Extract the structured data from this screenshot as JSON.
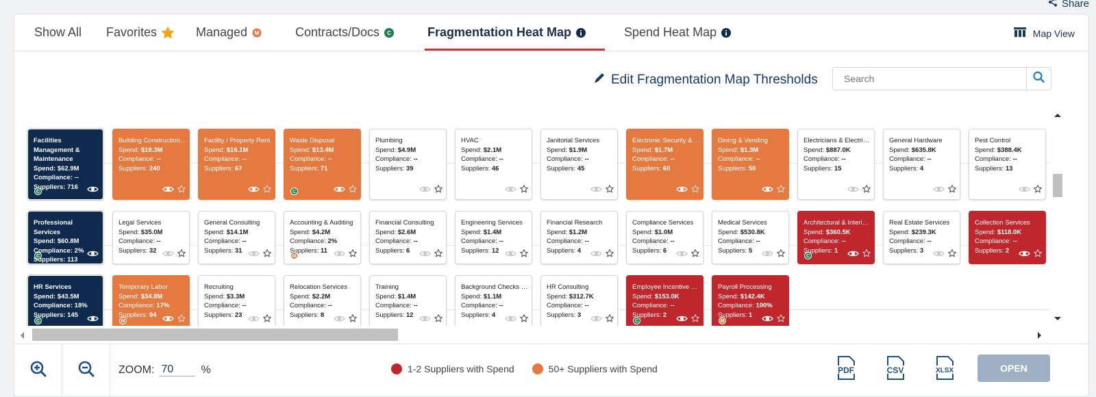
{
  "share_label": "Share",
  "tabs": [
    {
      "label": "Show All"
    },
    {
      "label": "Favorites"
    },
    {
      "label": "Managed"
    },
    {
      "label": "Contracts/Docs"
    },
    {
      "label": "Fragmentation Heat Map"
    },
    {
      "label": "Spend Heat Map"
    }
  ],
  "map_view_label": "Map View",
  "edit_thresholds_label": "Edit Fragmentation Map Thresholds",
  "search": {
    "placeholder": "Search",
    "value": ""
  },
  "rows": [
    {
      "category": {
        "name": "Facilities Management & Maintenance",
        "spend": "$62.9M",
        "compliance": "--",
        "suppliers": "716",
        "badge": "C"
      },
      "tiles": [
        {
          "name": "Building Construction ...",
          "spend": "$18.3M",
          "compliance": "--",
          "suppliers": "240",
          "color": "orange",
          "badge": ""
        },
        {
          "name": "Facility / Property Rent",
          "spend": "$16.1M",
          "compliance": "--",
          "suppliers": "67",
          "color": "orange",
          "badge": ""
        },
        {
          "name": "Waste Disposal",
          "spend": "$13.4M",
          "compliance": "--",
          "suppliers": "71",
          "color": "orange",
          "badge": "C"
        },
        {
          "name": "Plumbing",
          "spend": "$4.9M",
          "compliance": "--",
          "suppliers": "39",
          "color": "white",
          "badge": ""
        },
        {
          "name": "HVAC",
          "spend": "$2.1M",
          "compliance": "--",
          "suppliers": "46",
          "color": "white",
          "badge": ""
        },
        {
          "name": "Janitorial Services",
          "spend": "$1.9M",
          "compliance": "--",
          "suppliers": "45",
          "color": "white",
          "badge": ""
        },
        {
          "name": "Electronic Security & A...",
          "spend": "$1.7M",
          "compliance": "--",
          "suppliers": "60",
          "color": "orange",
          "badge": ""
        },
        {
          "name": "Dining & Vending",
          "spend": "$1.3M",
          "compliance": "--",
          "suppliers": "50",
          "color": "orange",
          "badge": ""
        },
        {
          "name": "Electricians & Electrical...",
          "spend": "$887.0K",
          "compliance": "--",
          "suppliers": "15",
          "color": "white",
          "badge": ""
        },
        {
          "name": "General Hardware",
          "spend": "$635.8K",
          "compliance": "--",
          "suppliers": "4",
          "color": "white",
          "badge": ""
        },
        {
          "name": "Pest Control",
          "spend": "$388.4K",
          "compliance": "--",
          "suppliers": "13",
          "color": "white",
          "badge": ""
        }
      ]
    },
    {
      "category": {
        "name": "Professional Services",
        "spend": "$60.8M",
        "compliance": "2%",
        "suppliers": "113",
        "badge": "C"
      },
      "tiles": [
        {
          "name": "Legal Services",
          "spend": "$35.0M",
          "compliance": "--",
          "suppliers": "32",
          "color": "white",
          "badge": ""
        },
        {
          "name": "General Consulting",
          "spend": "$14.1M",
          "compliance": "--",
          "suppliers": "31",
          "color": "white",
          "badge": ""
        },
        {
          "name": "Accounting & Auditing",
          "spend": "$4.2M",
          "compliance": "2%",
          "suppliers": "11",
          "color": "white",
          "badge": "M"
        },
        {
          "name": "Financial Consulting",
          "spend": "$2.6M",
          "compliance": "--",
          "suppliers": "6",
          "color": "white",
          "badge": ""
        },
        {
          "name": "Engineering Services",
          "spend": "$1.4M",
          "compliance": "--",
          "suppliers": "12",
          "color": "white",
          "badge": ""
        },
        {
          "name": "Financial Research",
          "spend": "$1.2M",
          "compliance": "--",
          "suppliers": "4",
          "color": "white",
          "badge": ""
        },
        {
          "name": "Compliance Services",
          "spend": "$1.0M",
          "compliance": "--",
          "suppliers": "6",
          "color": "white",
          "badge": ""
        },
        {
          "name": "Medical Services",
          "spend": "$530.8K",
          "compliance": "--",
          "suppliers": "5",
          "color": "white",
          "badge": ""
        },
        {
          "name": "Architectural & Interior...",
          "spend": "$360.5K",
          "compliance": "--",
          "suppliers": "1",
          "color": "red",
          "badge": "C"
        },
        {
          "name": "Real Estate Services",
          "spend": "$239.3K",
          "compliance": "--",
          "suppliers": "3",
          "color": "white",
          "badge": ""
        },
        {
          "name": "Collection Services",
          "spend": "$118.0K",
          "compliance": "--",
          "suppliers": "2",
          "color": "red",
          "badge": ""
        }
      ]
    },
    {
      "category": {
        "name": "HR Services",
        "spend": "$43.5M",
        "compliance": "18%",
        "suppliers": "145",
        "badge": "C"
      },
      "tiles": [
        {
          "name": "Temporary Labor",
          "spend": "$34.8M",
          "compliance": "17%",
          "suppliers": "94",
          "color": "orange",
          "badge": "M"
        },
        {
          "name": "Recruiting",
          "spend": "$3.3M",
          "compliance": "--",
          "suppliers": "23",
          "color": "white",
          "badge": ""
        },
        {
          "name": "Relocation Services",
          "spend": "$2.2M",
          "compliance": "--",
          "suppliers": "8",
          "color": "white",
          "badge": ""
        },
        {
          "name": "Training",
          "spend": "$1.4M",
          "compliance": "--",
          "suppliers": "12",
          "color": "white",
          "badge": ""
        },
        {
          "name": "Background Checks & ...",
          "spend": "$1.1M",
          "compliance": "--",
          "suppliers": "4",
          "color": "white",
          "badge": ""
        },
        {
          "name": "HR Consulting",
          "spend": "$312.7K",
          "compliance": "--",
          "suppliers": "3",
          "color": "white",
          "badge": ""
        },
        {
          "name": "Employee Incentive Pr...",
          "spend": "$153.0K",
          "compliance": "--",
          "suppliers": "2",
          "color": "red",
          "badge": "C"
        },
        {
          "name": "Payroll Processing",
          "spend": "$142.4K",
          "compliance": "100%",
          "suppliers": "1",
          "color": "red",
          "badge": "M"
        }
      ]
    }
  ],
  "field_labels": {
    "spend": "Spend: ",
    "compliance": "Compliance: ",
    "suppliers": "Suppliers: "
  },
  "zoom": {
    "label": "ZOOM:",
    "value": "70",
    "unit": "%"
  },
  "legend": [
    {
      "label": "1-2 Suppliers with Spend",
      "color": "#c0272d"
    },
    {
      "label": "50+ Suppliers with Spend",
      "color": "#e57a40"
    }
  ],
  "exports": [
    "PDF",
    "CSV",
    "XLSX"
  ],
  "open_label": "OPEN",
  "colors": {
    "navy": "#0e2a4f",
    "orange": "#e57a40",
    "red": "#c0272d",
    "accent_underline": "#c9363b",
    "link": "#163a66"
  }
}
